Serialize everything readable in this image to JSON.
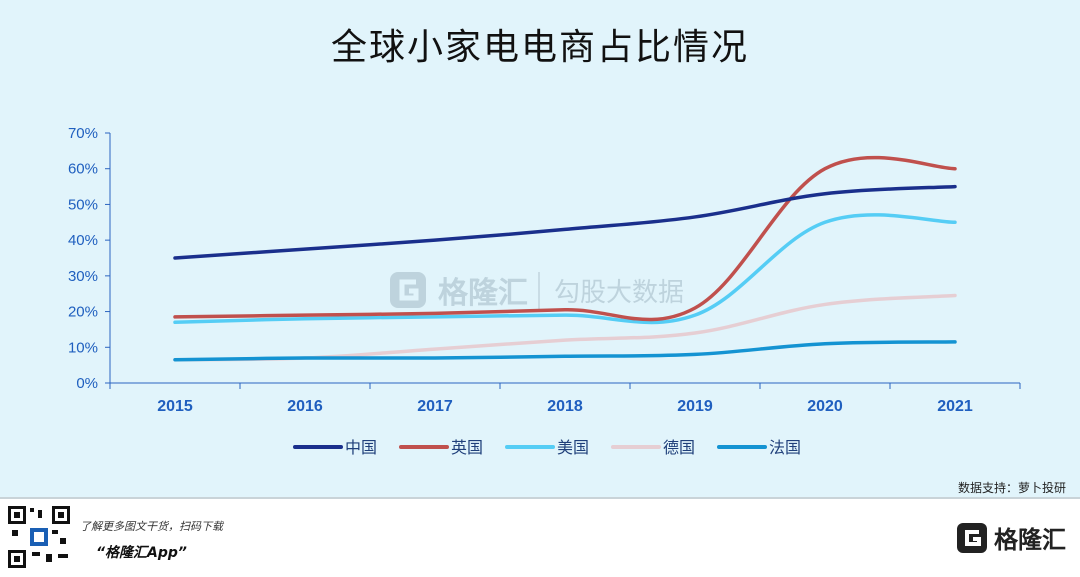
{
  "title": "全球小家电电商占比情况",
  "source": "数据支持：萝卜投研",
  "watermark": {
    "brand": "格隆汇",
    "tagline": "勾股大数据"
  },
  "footer": {
    "tip": "了解更多图文干货，扫码下载",
    "app": "“格隆汇App”",
    "brand": "格隆汇"
  },
  "chart_data": {
    "type": "line",
    "title": "全球小家电电商占比情况",
    "xlabel": "",
    "ylabel": "",
    "categories": [
      "2015",
      "2016",
      "2017",
      "2018",
      "2019",
      "2020",
      "2021"
    ],
    "ylim": [
      0,
      70
    ],
    "yticks": [
      0,
      10,
      20,
      30,
      40,
      50,
      60,
      70
    ],
    "ytick_labels": [
      "0%",
      "10%",
      "20%",
      "30%",
      "40%",
      "50%",
      "60%",
      "70%"
    ],
    "grid": false,
    "legend_position": "bottom",
    "series": [
      {
        "name": "中国",
        "color": "#1a2f8c",
        "values": [
          35,
          37.5,
          40,
          43,
          46.5,
          53,
          55
        ]
      },
      {
        "name": "英国",
        "color": "#c0504d",
        "values": [
          18.5,
          19,
          19.5,
          20.5,
          21,
          60,
          60
        ]
      },
      {
        "name": "美国",
        "color": "#55cdf5",
        "values": [
          17,
          18,
          18.5,
          19,
          19,
          45,
          45
        ]
      },
      {
        "name": "德国",
        "color": "#e6ced3",
        "values": [
          6.5,
          7,
          9.5,
          12,
          14,
          22,
          24.5
        ]
      },
      {
        "name": "法国",
        "color": "#1493d2",
        "values": [
          6.5,
          7,
          7,
          7.5,
          8,
          11,
          11.5
        ]
      }
    ]
  }
}
